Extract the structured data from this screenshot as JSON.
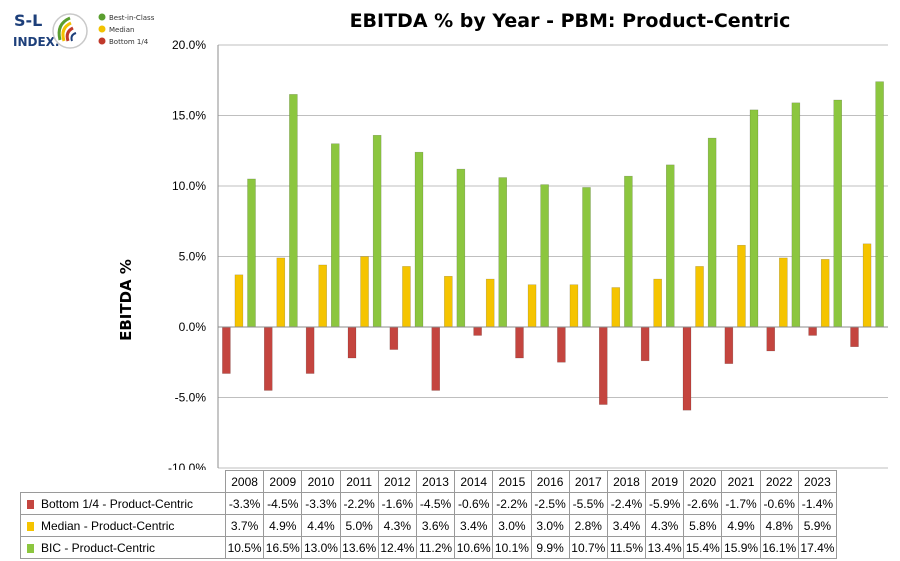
{
  "logo": {
    "brand_top": "S-L",
    "brand_bottom": "INDEX.",
    "legend": [
      {
        "label": "Best-in-Class",
        "color": "#5a9e2f"
      },
      {
        "label": "Median",
        "color": "#f2c200"
      },
      {
        "label": "Bottom 1/4",
        "color": "#c0392b"
      }
    ]
  },
  "colors": {
    "bottom": "#c4453f",
    "median": "#f5c400",
    "bic": "#8cc63f"
  },
  "chart_data": {
    "type": "bar",
    "title": "EBITDA % by Year - PBM: Product-Centric",
    "ylabel": "EBITDA %",
    "xlabel": "",
    "ylim": [
      -10,
      20
    ],
    "yticks": [
      "20.0%",
      "15.0%",
      "10.0%",
      "5.0%",
      "0.0%",
      "-5.0%",
      "-10.0%"
    ],
    "grid": true,
    "categories": [
      "2008",
      "2009",
      "2010",
      "2011",
      "2012",
      "2013",
      "2014",
      "2015",
      "2016",
      "2017",
      "2018",
      "2019",
      "2020",
      "2021",
      "2022",
      "2023"
    ],
    "series": [
      {
        "name": "Bottom 1/4 - Product-Centric",
        "color": "#c4453f",
        "values": [
          -3.3,
          -4.5,
          -3.3,
          -2.2,
          -1.6,
          -4.5,
          -0.6,
          -2.2,
          -2.5,
          -5.5,
          -2.4,
          -5.9,
          -2.6,
          -1.7,
          -0.6,
          -1.4
        ],
        "labels": [
          "-3.3%",
          "-4.5%",
          "-3.3%",
          "-2.2%",
          "-1.6%",
          "-4.5%",
          "-0.6%",
          "-2.2%",
          "-2.5%",
          "-5.5%",
          "-2.4%",
          "-5.9%",
          "-2.6%",
          "-1.7%",
          "-0.6%",
          "-1.4%"
        ]
      },
      {
        "name": "Median - Product-Centric",
        "color": "#f5c400",
        "values": [
          3.7,
          4.9,
          4.4,
          5.0,
          4.3,
          3.6,
          3.4,
          3.0,
          3.0,
          2.8,
          3.4,
          4.3,
          5.8,
          4.9,
          4.8,
          5.9
        ],
        "labels": [
          "3.7%",
          "4.9%",
          "4.4%",
          "5.0%",
          "4.3%",
          "3.6%",
          "3.4%",
          "3.0%",
          "3.0%",
          "2.8%",
          "3.4%",
          "4.3%",
          "5.8%",
          "4.9%",
          "4.8%",
          "5.9%"
        ]
      },
      {
        "name": "BIC - Product-Centric",
        "color": "#8cc63f",
        "values": [
          10.5,
          16.5,
          13.0,
          13.6,
          12.4,
          11.2,
          10.6,
          10.1,
          9.9,
          10.7,
          11.5,
          13.4,
          15.4,
          15.9,
          16.1,
          17.4
        ],
        "labels": [
          "10.5%",
          "16.5%",
          "13.0%",
          "13.6%",
          "12.4%",
          "11.2%",
          "10.6%",
          "10.1%",
          "9.9%",
          "10.7%",
          "11.5%",
          "13.4%",
          "15.4%",
          "15.9%",
          "16.1%",
          "17.4%"
        ]
      }
    ]
  }
}
